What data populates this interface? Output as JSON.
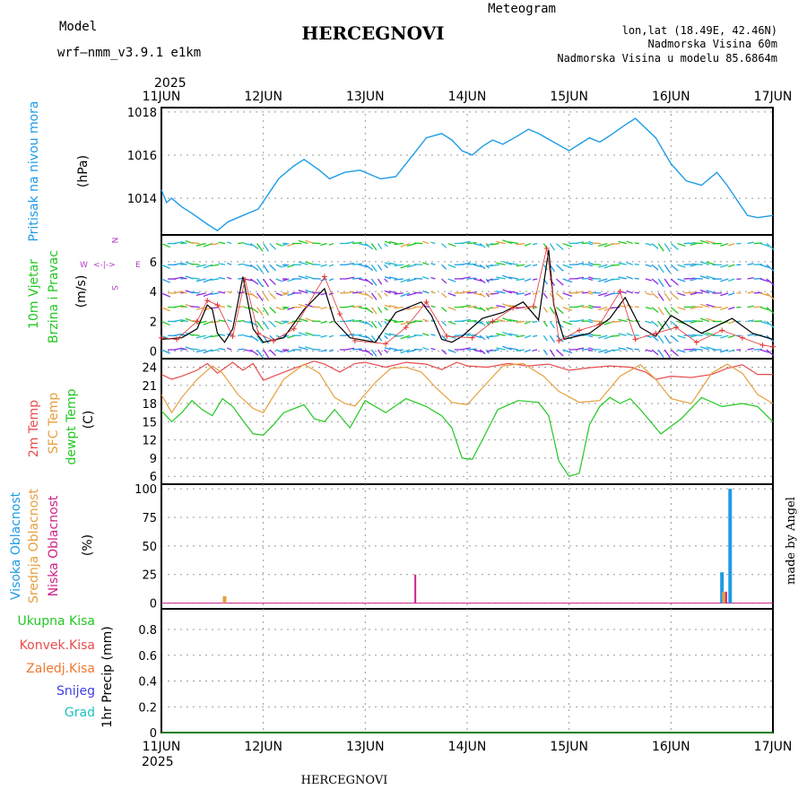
{
  "header": {
    "model_label": "Model",
    "model_name": "wrf—nmm_v3.9.1  e1km",
    "title": "HERCEGNOVI",
    "subtitle": "Meteogram",
    "coords": "lon,lat (18.49E, 42.46N)",
    "altitude": "Nadmorska Visina 60m",
    "model_altitude": "Nadmorska Visina u modelu 85.6864m",
    "year_top": "2025",
    "year_bottom": "2025",
    "footer": "HERCEGNOVI",
    "credit": "made by Angel"
  },
  "colors": {
    "pressure": "#1e9be6",
    "wind_speed": "#000000",
    "wind_gust": "#e03030",
    "temp2m": "#e84c4c",
    "sfc_temp": "#e6a040",
    "dewpoint": "#22c822",
    "cloud_high": "#1e9be6",
    "cloud_mid": "#e6a040",
    "cloud_low": "#cc2288",
    "precip_total": "#22c822",
    "precip_conv": "#e84c4c",
    "precip_frz": "#f07830",
    "snow": "#4040e0",
    "hail": "#20c0c0",
    "arrow_palette": [
      "#8a2be2",
      "#1e9be6",
      "#1fb8d0",
      "#22c822",
      "#e6a040"
    ]
  },
  "chart_data": [
    {
      "type": "line",
      "panel": "pressure",
      "ylabel_side": "Pritisak na nivou mora",
      "unit": "(hPa)",
      "x_days": [
        "11JUN",
        "12JUN",
        "13JUN",
        "14JUN",
        "15JUN",
        "16JUN",
        "17JUN"
      ],
      "ylim": [
        1012.3,
        1018.2
      ],
      "yticks": [
        1014,
        1016,
        1018
      ],
      "grid": true,
      "series": [
        {
          "x": [
            0,
            0.05,
            0.1,
            0.2,
            0.3,
            0.45,
            0.55,
            0.65,
            0.8,
            0.95,
            1.05,
            1.15,
            1.3,
            1.4,
            1.55,
            1.65,
            1.8,
            1.95,
            2.05,
            2.15,
            2.3,
            2.45,
            2.6,
            2.75,
            2.85,
            2.95,
            3.05,
            3.15,
            3.25,
            3.35,
            3.5,
            3.6,
            3.7,
            3.85,
            4.0,
            4.1,
            4.2,
            4.3,
            4.4,
            4.55,
            4.65,
            4.85,
            5.0,
            5.15,
            5.3,
            5.45,
            5.55,
            5.65,
            5.75,
            5.85,
            6.0
          ],
          "y": [
            1014.4,
            1013.8,
            1014.0,
            1013.6,
            1013.3,
            1012.8,
            1012.5,
            1012.9,
            1013.2,
            1013.5,
            1014.2,
            1014.9,
            1015.5,
            1015.8,
            1015.3,
            1014.9,
            1015.2,
            1015.3,
            1015.1,
            1014.9,
            1015.0,
            1015.9,
            1016.8,
            1017.0,
            1016.7,
            1016.2,
            1016.0,
            1016.4,
            1016.7,
            1016.5,
            1016.9,
            1017.2,
            1017.0,
            1016.6,
            1016.2,
            1016.5,
            1016.8,
            1016.6,
            1016.9,
            1017.4,
            1017.7,
            1016.8,
            1015.6,
            1014.8,
            1014.6,
            1015.2,
            1014.6,
            1013.9,
            1013.2,
            1013.1,
            1013.2
          ]
        }
      ]
    },
    {
      "type": "line",
      "panel": "wind",
      "ylabel_side": [
        "10m Vjetar",
        "Brzina i Pravac"
      ],
      "unit": "(m/s)",
      "compass": {
        "n": "N",
        "s": "S",
        "w": "W",
        "e": "E",
        "arrow_h": "<-|->"
      },
      "ylim": [
        -0.5,
        7.8
      ],
      "yticks": [
        0,
        2,
        4,
        6
      ],
      "grid": true,
      "series": [
        {
          "name": "speed",
          "x": [
            0,
            0.2,
            0.35,
            0.45,
            0.5,
            0.55,
            0.62,
            0.7,
            0.8,
            0.9,
            1.0,
            1.2,
            1.4,
            1.6,
            1.7,
            1.85,
            2.1,
            2.3,
            2.55,
            2.65,
            2.75,
            2.85,
            2.95,
            3.15,
            3.35,
            3.55,
            3.7,
            3.8,
            3.85,
            3.95,
            4.2,
            4.4,
            4.55,
            4.7,
            4.85,
            5.0,
            5.3,
            5.6,
            5.8,
            6.0
          ],
          "y": [
            0.8,
            0.9,
            1.5,
            3.1,
            2.8,
            1.2,
            0.6,
            1.5,
            5.0,
            1.5,
            0.6,
            0.9,
            2.8,
            4.2,
            2.0,
            0.9,
            0.6,
            2.6,
            3.3,
            2.4,
            0.8,
            0.6,
            1.0,
            2.2,
            2.6,
            3.3,
            2.1,
            6.8,
            3.1,
            0.8,
            1.2,
            2.2,
            3.6,
            1.6,
            1.0,
            2.4,
            1.2,
            2.2,
            1.2,
            0.8
          ]
        },
        {
          "name": "gust",
          "x": [
            0,
            0.15,
            0.35,
            0.45,
            0.55,
            0.7,
            0.82,
            0.95,
            1.1,
            1.3,
            1.6,
            1.75,
            1.9,
            2.2,
            2.4,
            2.6,
            2.8,
            3.05,
            3.25,
            3.45,
            3.65,
            3.78,
            3.9,
            4.1,
            4.3,
            4.5,
            4.65,
            4.85,
            5.05,
            5.25,
            5.5,
            5.7,
            5.9,
            6.0
          ],
          "y": [
            0.9,
            0.8,
            2.0,
            3.4,
            3.1,
            1.0,
            4.8,
            1.2,
            0.7,
            1.5,
            5.0,
            2.5,
            0.7,
            0.5,
            1.6,
            3.3,
            1.0,
            0.9,
            2.0,
            2.9,
            3.0,
            6.9,
            0.7,
            1.4,
            1.8,
            4.0,
            0.8,
            1.2,
            1.6,
            0.6,
            1.4,
            0.9,
            0.4,
            0.3
          ]
        }
      ]
    },
    {
      "type": "line",
      "panel": "temperature",
      "ylabel_side": [
        "2m Temp",
        "SFC Temp",
        "dewpt Temp"
      ],
      "unit": "(C)",
      "ylim": [
        4.7,
        25.4
      ],
      "yticks": [
        6,
        9,
        12,
        15,
        18,
        21,
        24
      ],
      "grid": true,
      "series": [
        {
          "name": "2m Temp",
          "x": [
            0,
            0.1,
            0.2,
            0.35,
            0.45,
            0.55,
            0.7,
            0.8,
            0.9,
            1.0,
            1.1,
            1.3,
            1.5,
            1.6,
            1.75,
            1.9,
            2.0,
            2.2,
            2.4,
            2.6,
            2.75,
            2.9,
            3.0,
            3.2,
            3.4,
            3.6,
            3.8,
            4.0,
            4.2,
            4.4,
            4.6,
            4.75,
            4.85,
            5.0,
            5.2,
            5.4,
            5.55,
            5.7,
            5.85,
            6.0
          ],
          "y": [
            22.8,
            22.0,
            22.5,
            23.5,
            24.6,
            23.0,
            24.8,
            23.5,
            24.6,
            21.8,
            22.5,
            23.8,
            25.0,
            24.5,
            23.2,
            24.6,
            24.8,
            24.0,
            24.8,
            24.5,
            23.6,
            24.8,
            24.2,
            24.0,
            24.6,
            24.2,
            24.5,
            23.5,
            23.9,
            24.2,
            24.0,
            23.2,
            22.0,
            22.5,
            22.3,
            22.8,
            23.8,
            24.4,
            22.8,
            22.8
          ]
        },
        {
          "name": "SFC Temp",
          "x": [
            0,
            0.1,
            0.2,
            0.35,
            0.5,
            0.6,
            0.75,
            0.9,
            1.0,
            1.2,
            1.4,
            1.55,
            1.7,
            1.8,
            1.9,
            2.1,
            2.25,
            2.4,
            2.55,
            2.7,
            2.85,
            3.0,
            3.2,
            3.35,
            3.55,
            3.75,
            3.9,
            4.1,
            4.3,
            4.5,
            4.7,
            4.85,
            5.0,
            5.2,
            5.4,
            5.55,
            5.7,
            5.85,
            6.0
          ],
          "y": [
            19.5,
            16.5,
            19.0,
            22.0,
            24.2,
            23.0,
            19.5,
            17.2,
            16.5,
            22.0,
            24.5,
            23.0,
            19.0,
            18.0,
            17.6,
            21.5,
            23.8,
            24.0,
            23.2,
            20.5,
            18.2,
            17.8,
            21.5,
            24.2,
            24.6,
            22.5,
            20.0,
            18.2,
            18.5,
            22.5,
            24.4,
            22.0,
            18.8,
            18.0,
            23.0,
            24.5,
            23.0,
            19.5,
            18.0
          ]
        },
        {
          "name": "dewpt Temp",
          "x": [
            0,
            0.1,
            0.2,
            0.3,
            0.4,
            0.5,
            0.6,
            0.7,
            0.8,
            0.9,
            1.0,
            1.1,
            1.2,
            1.4,
            1.5,
            1.6,
            1.7,
            1.85,
            2.0,
            2.2,
            2.4,
            2.6,
            2.75,
            2.85,
            2.95,
            3.05,
            3.15,
            3.3,
            3.5,
            3.7,
            3.8,
            3.9,
            4.0,
            4.1,
            4.2,
            4.3,
            4.4,
            4.5,
            4.6,
            4.7,
            4.9,
            5.1,
            5.3,
            5.5,
            5.7,
            5.85,
            6.0
          ],
          "y": [
            16.8,
            15.0,
            16.5,
            18.5,
            17.0,
            16.0,
            18.8,
            17.5,
            15.2,
            13.0,
            12.8,
            14.5,
            16.5,
            17.8,
            15.5,
            15.0,
            17.0,
            14.0,
            18.5,
            16.5,
            18.8,
            17.5,
            16.0,
            14.0,
            9.0,
            8.8,
            12.0,
            17.0,
            18.5,
            18.2,
            16.0,
            8.5,
            6.0,
            6.5,
            14.5,
            17.5,
            19.0,
            18.0,
            18.8,
            17.0,
            13.0,
            15.5,
            19.0,
            17.5,
            18.0,
            17.5,
            15.0
          ]
        }
      ]
    },
    {
      "type": "bar",
      "panel": "clouds",
      "ylabel_side": [
        "Visoka Oblacnost",
        "Srednja Oblacnost",
        "Niska Oblacnost"
      ],
      "unit": "(%)",
      "ylim": [
        -5,
        104
      ],
      "yticks": [
        0,
        25,
        50,
        75,
        100
      ],
      "grid": true,
      "series": [
        {
          "name": "Visoka Oblacnost",
          "x": [
            5.5,
            5.58
          ],
          "values": [
            27,
            100
          ]
        },
        {
          "name": "Srednja Oblacnost",
          "x": [
            0.62,
            5.52
          ],
          "values": [
            6,
            10
          ]
        },
        {
          "name": "Niska Oblacnost",
          "x": [
            2.5,
            5.55
          ],
          "values": [
            25,
            10
          ]
        }
      ]
    },
    {
      "type": "line",
      "panel": "precipitation",
      "ylabel_side": [
        "Ukupna Kisa",
        "Konvek.Kisa",
        "Zaledj.Kisa",
        "Snijeg",
        "Grad"
      ],
      "unit": "1hr Precip (mm)",
      "ylim": [
        0,
        0.96
      ],
      "yticks": [
        "0",
        "0.2",
        "0.4",
        "0.6",
        "0.8"
      ],
      "grid": true,
      "series": [
        {
          "name": "Ukupna Kisa",
          "x": [
            0,
            6
          ],
          "y": [
            0,
            0
          ]
        }
      ]
    }
  ]
}
